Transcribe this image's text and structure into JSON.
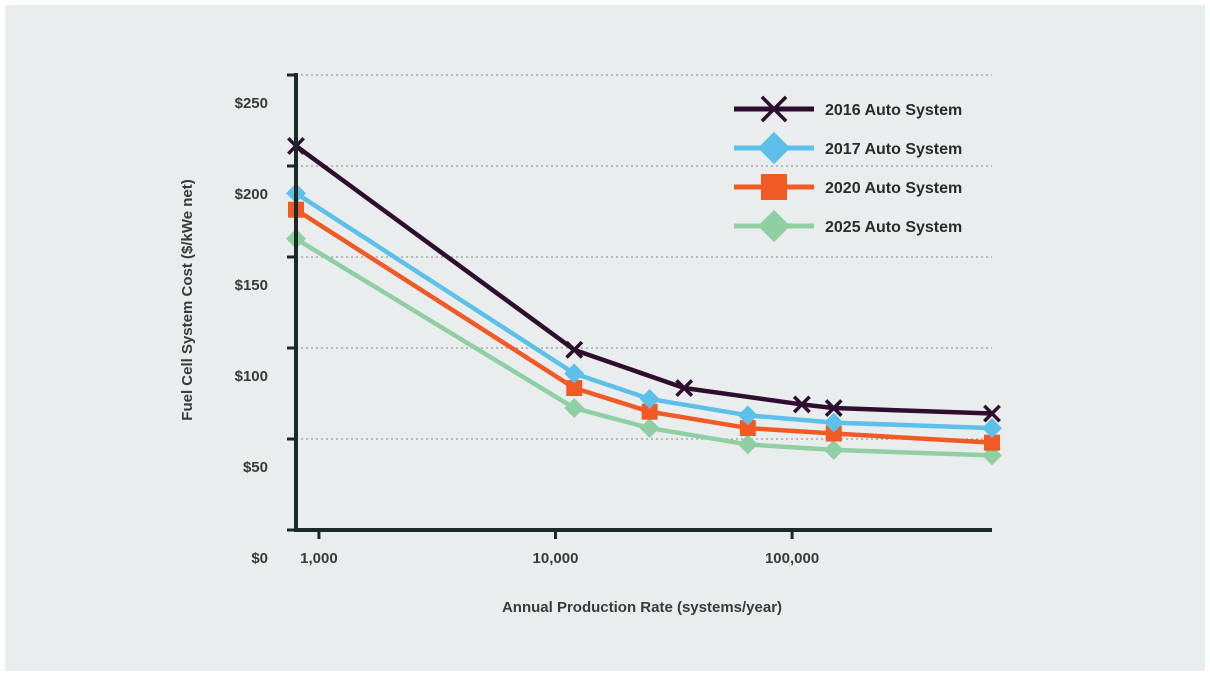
{
  "chart_data": {
    "type": "line",
    "x_scale": "log",
    "x": [
      800,
      12000,
      25000,
      35000,
      65000,
      110000,
      150000,
      700000
    ],
    "x_ticks": [
      1000,
      10000,
      100000
    ],
    "x_tick_labels": [
      "1,000",
      "10,000",
      "100,000"
    ],
    "xlim": [
      800,
      700000
    ],
    "xlabel": "Annual Production Rate (systems/year)",
    "ylabel": "Fuel Cell System Cost ($/kWe net)",
    "ylim": [
      0,
      250
    ],
    "y_ticks": [
      0,
      50,
      100,
      150,
      200,
      250
    ],
    "y_tick_labels": [
      "$0",
      "$50",
      "$100",
      "$150",
      "$200",
      "$250"
    ],
    "grid": "horizontal dotted",
    "legend_position": "top-right",
    "series": [
      {
        "name": "2016 Auto System",
        "color": "#2e0d2e",
        "marker": "x",
        "x": [
          800,
          12000,
          35000,
          110000,
          150000,
          700000
        ],
        "values": [
          211,
          99,
          78,
          69,
          67,
          64
        ]
      },
      {
        "name": "2017 Auto System",
        "color": "#5cc0e8",
        "marker": "diamond",
        "x": [
          800,
          12000,
          25000,
          65000,
          150000,
          700000
        ],
        "values": [
          185,
          86,
          72,
          63,
          59,
          56
        ]
      },
      {
        "name": "2020 Auto System",
        "color": "#f15a24",
        "marker": "square",
        "x": [
          800,
          12000,
          25000,
          65000,
          150000,
          700000
        ],
        "values": [
          176,
          78,
          65,
          56,
          53,
          48
        ]
      },
      {
        "name": "2025 Auto System",
        "color": "#8fcfa1",
        "marker": "diamond",
        "x": [
          800,
          12000,
          25000,
          65000,
          150000,
          700000
        ],
        "values": [
          160,
          67,
          56,
          47,
          44,
          41
        ]
      }
    ]
  }
}
